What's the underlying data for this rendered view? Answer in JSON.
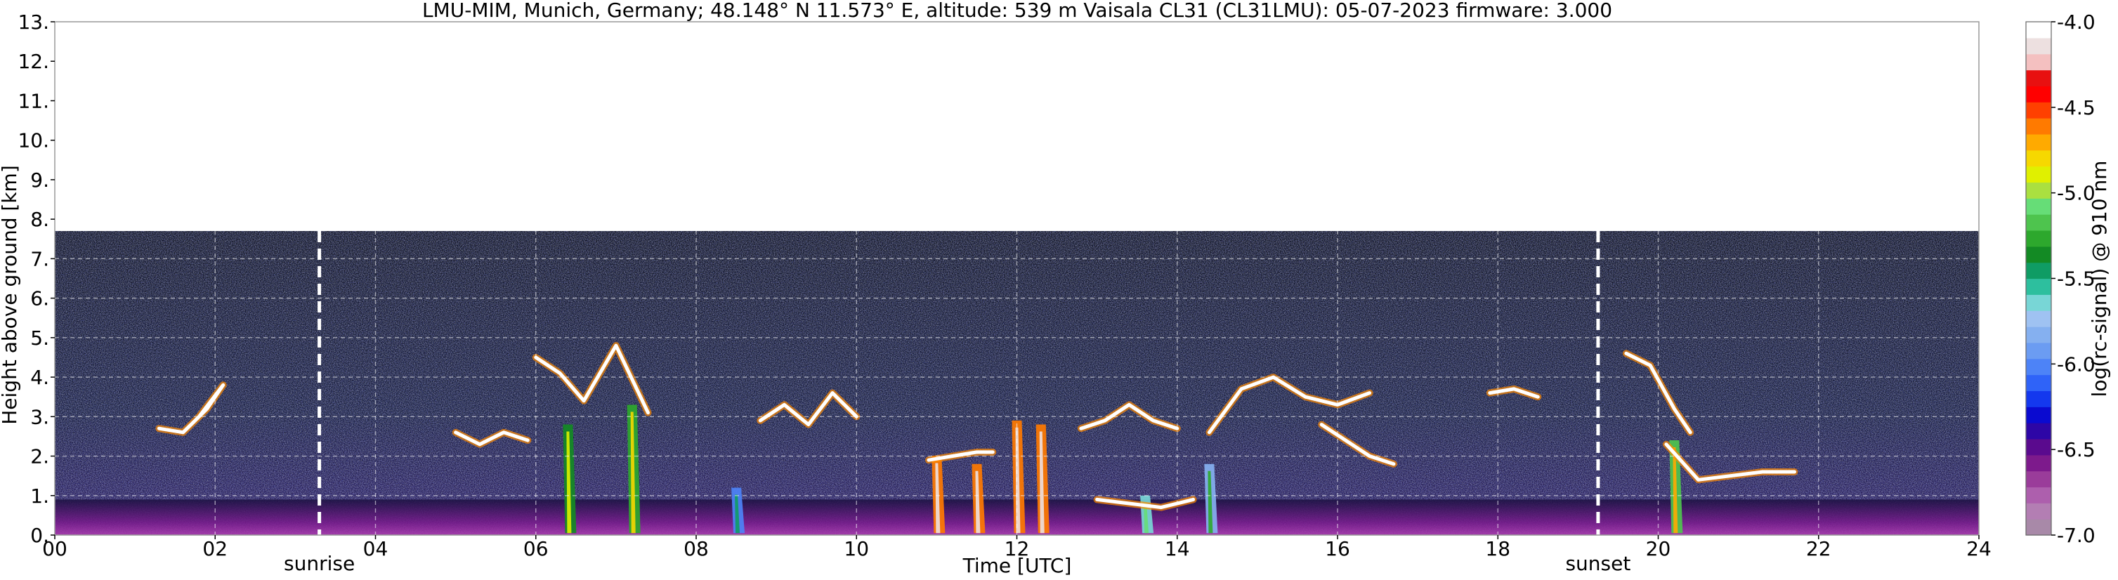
{
  "chart_data": {
    "type": "heatmap",
    "title": "LMU-MIM, Munich, Germany; 48.148° N 11.573° E, altitude: 539 m    Vaisala CL31 (CL31LMU): 05-07-2023    firmware: 3.000",
    "xlabel": "Time [UTC]",
    "ylabel": "Height above ground [km]",
    "xlim": [
      0,
      24
    ],
    "ylim": [
      0,
      13
    ],
    "x_ticks": [
      "00",
      "02",
      "04",
      "06",
      "08",
      "10",
      "12",
      "14",
      "16",
      "18",
      "20",
      "22",
      "24"
    ],
    "x_tick_values": [
      0,
      2,
      4,
      6,
      8,
      10,
      12,
      14,
      16,
      18,
      20,
      22,
      24
    ],
    "y_ticks": [
      "0.",
      "1.",
      "2.",
      "3.",
      "4.",
      "5.",
      "6.",
      "7.",
      "8.",
      "9.",
      "10.",
      "11.",
      "12.",
      "13."
    ],
    "y_tick_values": [
      0,
      1,
      2,
      3,
      4,
      5,
      6,
      7,
      8,
      9,
      10,
      11,
      12,
      13
    ],
    "grid": true,
    "data_top_km": 7.7,
    "annotations": [
      {
        "label": "sunrise",
        "x": 3.3
      },
      {
        "label": "sunset",
        "x": 19.25
      }
    ],
    "colorbar": {
      "label": "log(rc-signal) @ 910 nm",
      "range": [
        -7.0,
        -4.0
      ],
      "ticks": [
        "-4.0",
        "-4.5",
        "-5.0",
        "-5.5",
        "-6.0",
        "-6.5",
        "-7.0"
      ],
      "tick_values": [
        -4.0,
        -4.5,
        -5.0,
        -5.5,
        -6.0,
        -6.5,
        -7.0
      ],
      "colors": [
        "#a889a8",
        "#b37eb3",
        "#ad5fad",
        "#9a3c9a",
        "#7d1a8c",
        "#5a0a8e",
        "#2d06a6",
        "#0a0ad0",
        "#1438ee",
        "#2f63f8",
        "#4d83f7",
        "#6b9cf2",
        "#85b0f0",
        "#9fc2f2",
        "#78d6d6",
        "#2dbf9e",
        "#0f9c64",
        "#138a24",
        "#2da82d",
        "#4ec44e",
        "#66dd77",
        "#aae040",
        "#e0f000",
        "#f6d800",
        "#ffaa00",
        "#ff7a00",
        "#ff4000",
        "#ff0000",
        "#e81010",
        "#f4c0c0",
        "#ede0e0",
        "#ffffff"
      ]
    },
    "features": [
      {
        "kind": "cloud_layer",
        "x": [
          1.3,
          1.6,
          1.9,
          2.1,
          1.8
        ],
        "y": [
          2.7,
          2.6,
          3.2,
          3.8,
          3.0
        ]
      },
      {
        "kind": "cloud_layer",
        "x": [
          5.0,
          5.3,
          5.6,
          5.9
        ],
        "y": [
          2.6,
          2.3,
          2.6,
          2.4
        ]
      },
      {
        "kind": "cloud_layer",
        "x": [
          6.0,
          6.3,
          6.6,
          7.0,
          7.4
        ],
        "y": [
          4.5,
          4.1,
          3.4,
          4.8,
          3.1
        ]
      },
      {
        "kind": "cloud_layer",
        "x": [
          8.8,
          9.1,
          9.4,
          9.7,
          10.0
        ],
        "y": [
          2.9,
          3.3,
          2.8,
          3.6,
          3.0
        ]
      },
      {
        "kind": "cloud_layer",
        "x": [
          10.9,
          11.2,
          11.5,
          11.7
        ],
        "y": [
          1.9,
          2.0,
          2.1,
          2.1
        ]
      },
      {
        "kind": "cloud_layer",
        "x": [
          12.8,
          13.1,
          13.4,
          13.7,
          14.0
        ],
        "y": [
          2.7,
          2.9,
          3.3,
          2.9,
          2.7
        ]
      },
      {
        "kind": "cloud_layer",
        "x": [
          13.0,
          13.4,
          13.8,
          14.2
        ],
        "y": [
          0.9,
          0.8,
          0.7,
          0.9
        ]
      },
      {
        "kind": "cloud_layer",
        "x": [
          14.4,
          14.8,
          15.2,
          15.6,
          16.0,
          16.4
        ],
        "y": [
          2.6,
          3.7,
          4.0,
          3.5,
          3.3,
          3.6
        ]
      },
      {
        "kind": "cloud_layer",
        "x": [
          15.8,
          16.1,
          16.4,
          16.7
        ],
        "y": [
          2.8,
          2.4,
          2.0,
          1.8
        ]
      },
      {
        "kind": "cloud_layer",
        "x": [
          17.9,
          18.2,
          18.5
        ],
        "y": [
          3.6,
          3.7,
          3.5
        ]
      },
      {
        "kind": "cloud_layer",
        "x": [
          19.6,
          19.9,
          20.2,
          20.4
        ],
        "y": [
          4.6,
          4.3,
          3.2,
          2.6
        ]
      },
      {
        "kind": "cloud_layer",
        "x": [
          20.1,
          20.5,
          20.9,
          21.3,
          21.7
        ],
        "y": [
          2.3,
          1.4,
          1.5,
          1.6,
          1.6
        ]
      },
      {
        "kind": "precip_streak",
        "x": 6.4,
        "y_top": 2.8,
        "level": -5.4
      },
      {
        "kind": "precip_streak",
        "x": 7.2,
        "y_top": 3.3,
        "level": -5.3
      },
      {
        "kind": "precip_streak",
        "x": 8.5,
        "y_top": 1.2,
        "level": -6.0
      },
      {
        "kind": "precip_streak",
        "x": 11.0,
        "y_top": 2.0,
        "level": -4.6
      },
      {
        "kind": "precip_streak",
        "x": 11.5,
        "y_top": 1.8,
        "level": -4.6
      },
      {
        "kind": "precip_streak",
        "x": 12.0,
        "y_top": 2.9,
        "level": -4.6
      },
      {
        "kind": "precip_streak",
        "x": 12.3,
        "y_top": 2.8,
        "level": -4.6
      },
      {
        "kind": "precip_streak",
        "x": 13.6,
        "y_top": 1.0,
        "level": -5.6
      },
      {
        "kind": "precip_streak",
        "x": 14.4,
        "y_top": 1.8,
        "level": -5.8
      },
      {
        "kind": "precip_streak",
        "x": 20.2,
        "y_top": 2.4,
        "level": -5.2
      }
    ]
  }
}
